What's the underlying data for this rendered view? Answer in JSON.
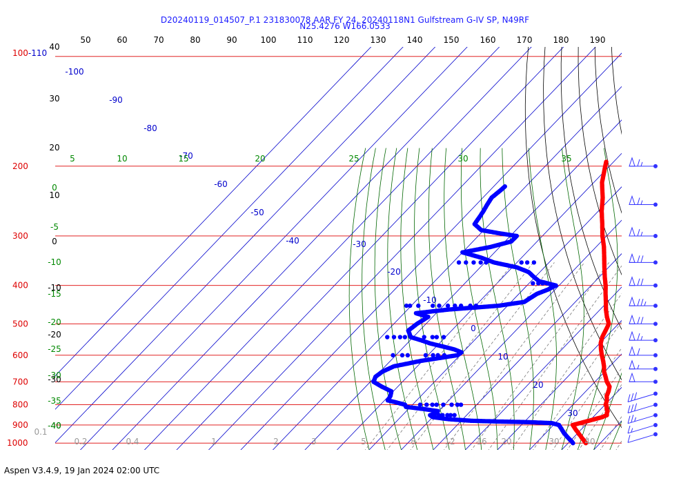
{
  "header": {
    "title_line1": "D20240119_014507_P.1 231830078 AAR FY 24, 20240118N1 Gulfstream G-IV SP, N49RF",
    "title_line2": "N25.4276 W166.0533"
  },
  "footer": {
    "text": "Aspen V3.4.9, 19 Jan 2024  02:00 UTC"
  },
  "colors": {
    "isobar": "#dd0000",
    "isotherm": "#0000cc",
    "dry_adiabat": "#000000",
    "moist_adiabat": "#006600",
    "mixing_ratio": "#777777",
    "temperature": "#ff0000",
    "dewpoint": "#0000ff",
    "wind_barb": "#3333ff"
  },
  "chart_data": {
    "type": "scatter",
    "chart_kind": "skew-t log-p sounding",
    "pressure_levels": [
      "100-110",
      "200",
      "300",
      "400",
      "500",
      "600",
      "700",
      "800",
      "900",
      "1000"
    ],
    "top_theta_labels": [
      "50",
      "60",
      "70",
      "80",
      "90",
      "100",
      "110",
      "120",
      "130",
      "140",
      "150",
      "160",
      "170",
      "180",
      "190"
    ],
    "isotherm_labels": [
      "-100",
      "-90",
      "-80",
      "-70",
      "-60",
      "-50",
      "-40",
      "-30",
      "-20",
      "-10",
      "0",
      "10",
      "20",
      "30"
    ],
    "left_temp_labels": [
      "40",
      "30",
      "20",
      "10",
      "0",
      "-10",
      "-20",
      "-30",
      "-40"
    ],
    "moist_labels_top": [
      "5",
      "10",
      "15",
      "20",
      "25",
      "30",
      "35"
    ],
    "moist_labels_left": [
      "0",
      "-5",
      "-10",
      "-15",
      "-20",
      "-25",
      "-30",
      "-35",
      "-40"
    ],
    "mixing_ratio_labels": [
      "0.1",
      "0.2",
      "0.4",
      "1",
      "2",
      "3",
      "5",
      "8",
      "12",
      "16",
      "20",
      "30",
      "40"
    ],
    "temperature_profile": [
      {
        "p": 1000,
        "t": 25.5
      },
      {
        "p": 990,
        "t": 24.6
      },
      {
        "p": 980,
        "t": 23.7
      },
      {
        "p": 970,
        "t": 22.7
      },
      {
        "p": 960,
        "t": 21.8
      },
      {
        "p": 950,
        "t": 20.8
      },
      {
        "p": 940,
        "t": 19.9
      },
      {
        "p": 930,
        "t": 18.9
      },
      {
        "p": 920,
        "t": 17.9
      },
      {
        "p": 910,
        "t": 17.0
      },
      {
        "p": 900,
        "t": 16.0
      },
      {
        "p": 890,
        "t": 17.7
      },
      {
        "p": 880,
        "t": 19.4
      },
      {
        "p": 870,
        "t": 21.1
      },
      {
        "p": 860,
        "t": 22.8
      },
      {
        "p": 850,
        "t": 23.7
      },
      {
        "p": 840,
        "t": 23.1
      },
      {
        "p": 830,
        "t": 22.7
      },
      {
        "p": 820,
        "t": 21.8
      },
      {
        "p": 810,
        "t": 21.2
      },
      {
        "p": 800,
        "t": 20.2
      },
      {
        "p": 780,
        "t": 19.3
      },
      {
        "p": 760,
        "t": 17.9
      },
      {
        "p": 740,
        "t": 17.1
      },
      {
        "p": 720,
        "t": 16.0
      },
      {
        "p": 700,
        "t": 13.7
      },
      {
        "p": 680,
        "t": 11.8
      },
      {
        "p": 660,
        "t": 9.8
      },
      {
        "p": 640,
        "t": 8.2
      },
      {
        "p": 620,
        "t": 6.3
      },
      {
        "p": 600,
        "t": 4.2
      },
      {
        "p": 580,
        "t": 2.2
      },
      {
        "p": 560,
        "t": 0.3
      },
      {
        "p": 540,
        "t": -1.1
      },
      {
        "p": 520,
        "t": -2.0
      },
      {
        "p": 500,
        "t": -3.0
      },
      {
        "p": 480,
        "t": -5.7
      },
      {
        "p": 460,
        "t": -8.2
      },
      {
        "p": 440,
        "t": -10.5
      },
      {
        "p": 420,
        "t": -13.0
      },
      {
        "p": 400,
        "t": -15.5
      },
      {
        "p": 380,
        "t": -18.4
      },
      {
        "p": 360,
        "t": -21.3
      },
      {
        "p": 340,
        "t": -24.3
      },
      {
        "p": 320,
        "t": -27.5
      },
      {
        "p": 300,
        "t": -31.3
      },
      {
        "p": 280,
        "t": -34.9
      },
      {
        "p": 260,
        "t": -38.9
      },
      {
        "p": 240,
        "t": -42.7
      },
      {
        "p": 220,
        "t": -47.4
      },
      {
        "p": 200,
        "t": -51.3
      },
      {
        "p": 195,
        "t": -52.3
      }
    ],
    "dewpoint_profile": [
      {
        "p": 1000,
        "t": 21.5
      },
      {
        "p": 990,
        "t": 20.6
      },
      {
        "p": 980,
        "t": 19.5
      },
      {
        "p": 960,
        "t": 17.4
      },
      {
        "p": 940,
        "t": 15.4
      },
      {
        "p": 920,
        "t": 13.6
      },
      {
        "p": 900,
        "t": 11.7
      },
      {
        "p": 890,
        "t": 8.9
      },
      {
        "p": 885,
        "t": 1.0
      },
      {
        "p": 882,
        "t": -8.0
      },
      {
        "p": 878,
        "t": -17.0
      },
      {
        "p": 870,
        "t": -24.4
      },
      {
        "p": 860,
        "t": -29.9
      },
      {
        "p": 850,
        "t": -31.4
      },
      {
        "p": 840,
        "t": -30.1
      },
      {
        "p": 830,
        "t": -30.2
      },
      {
        "p": 820,
        "t": -35.3
      },
      {
        "p": 810,
        "t": -41.4
      },
      {
        "p": 800,
        "t": -42.3
      },
      {
        "p": 790,
        "t": -45.5
      },
      {
        "p": 780,
        "t": -49.0
      },
      {
        "p": 760,
        "t": -49.5
      },
      {
        "p": 740,
        "t": -50.6
      },
      {
        "p": 720,
        "t": -55.0
      },
      {
        "p": 700,
        "t": -59.0
      },
      {
        "p": 680,
        "t": -59.9
      },
      {
        "p": 660,
        "t": -59.3
      },
      {
        "p": 640,
        "t": -57.3
      },
      {
        "p": 620,
        "t": -50.5
      },
      {
        "p": 600,
        "t": -40.8
      },
      {
        "p": 590,
        "t": -40.4
      },
      {
        "p": 580,
        "t": -43.5
      },
      {
        "p": 570,
        "t": -48.1
      },
      {
        "p": 560,
        "t": -52.9
      },
      {
        "p": 550,
        "t": -56.6
      },
      {
        "p": 540,
        "t": -60.8
      },
      {
        "p": 530,
        "t": -62.1
      },
      {
        "p": 520,
        "t": -63.5
      },
      {
        "p": 500,
        "t": -62.8
      },
      {
        "p": 480,
        "t": -61.4
      },
      {
        "p": 470,
        "t": -66.3
      },
      {
        "p": 460,
        "t": -57.2
      },
      {
        "p": 450,
        "t": -42.8
      },
      {
        "p": 440,
        "t": -35.9
      },
      {
        "p": 430,
        "t": -35.2
      },
      {
        "p": 420,
        "t": -34.4
      },
      {
        "p": 410,
        "t": -32.3
      },
      {
        "p": 400,
        "t": -31.0
      },
      {
        "p": 390,
        "t": -37.6
      },
      {
        "p": 380,
        "t": -40.6
      },
      {
        "p": 370,
        "t": -43.5
      },
      {
        "p": 360,
        "t": -48.6
      },
      {
        "p": 350,
        "t": -57.1
      },
      {
        "p": 340,
        "t": -62.8
      },
      {
        "p": 330,
        "t": -70.0
      },
      {
        "p": 320,
        "t": -63.0
      },
      {
        "p": 310,
        "t": -58.1
      },
      {
        "p": 300,
        "t": -58.0
      },
      {
        "p": 295,
        "t": -64.7
      },
      {
        "p": 290,
        "t": -70.8
      },
      {
        "p": 280,
        "t": -74.7
      },
      {
        "p": 270,
        "t": -75.2
      },
      {
        "p": 260,
        "t": -75.8
      },
      {
        "p": 250,
        "t": -76.6
      },
      {
        "p": 240,
        "t": -77.3
      },
      {
        "p": 230,
        "t": -76.7
      },
      {
        "p": 225,
        "t": -76.5
      }
    ],
    "dewpoint_extra_points": [
      {
        "p": 850,
        "t": -28.6
      },
      {
        "p": 850,
        "t": -27.5
      },
      {
        "p": 850,
        "t": -26.0
      },
      {
        "p": 850,
        "t": -25.0
      },
      {
        "p": 850,
        "t": -23.8
      },
      {
        "p": 800,
        "t": -37.6
      },
      {
        "p": 800,
        "t": -35.6
      },
      {
        "p": 800,
        "t": -33.8
      },
      {
        "p": 800,
        "t": -32.5
      },
      {
        "p": 800,
        "t": -30.4
      },
      {
        "p": 800,
        "t": -27.8
      },
      {
        "p": 800,
        "t": -26.0
      },
      {
        "p": 800,
        "t": -24.9
      },
      {
        "p": 600,
        "t": -60.9
      },
      {
        "p": 600,
        "t": -58.0
      },
      {
        "p": 600,
        "t": -56.3
      },
      {
        "p": 600,
        "t": -50.7
      },
      {
        "p": 600,
        "t": -48.4
      },
      {
        "p": 600,
        "t": -46.9
      },
      {
        "p": 600,
        "t": -44.9
      },
      {
        "p": 540,
        "t": -68.1
      },
      {
        "p": 540,
        "t": -66.0
      },
      {
        "p": 540,
        "t": -64.1
      },
      {
        "p": 540,
        "t": -62.6
      },
      {
        "p": 540,
        "t": -56.6
      },
      {
        "p": 540,
        "t": -54.0
      },
      {
        "p": 540,
        "t": -52.7
      },
      {
        "p": 540,
        "t": -50.5
      },
      {
        "p": 450,
        "t": -71.5
      },
      {
        "p": 450,
        "t": -70.4
      },
      {
        "p": 450,
        "t": -67.8
      },
      {
        "p": 450,
        "t": -63.3
      },
      {
        "p": 450,
        "t": -61.3
      },
      {
        "p": 450,
        "t": -58.6
      },
      {
        "p": 450,
        "t": -56.4
      },
      {
        "p": 450,
        "t": -54.5
      },
      {
        "p": 450,
        "t": -51.6
      },
      {
        "p": 450,
        "t": -49.8
      },
      {
        "p": 395,
        "t": -38.8
      },
      {
        "p": 395,
        "t": -37.1
      },
      {
        "p": 395,
        "t": -35.8
      },
      {
        "p": 350,
        "t": -68.1
      },
      {
        "p": 350,
        "t": -65.9
      },
      {
        "p": 350,
        "t": -63.5
      },
      {
        "p": 350,
        "t": -61.3
      },
      {
        "p": 350,
        "t": -59.6
      },
      {
        "p": 350,
        "t": -48.6
      },
      {
        "p": 350,
        "t": -46.8
      },
      {
        "p": 350,
        "t": -44.7
      }
    ],
    "wind_barbs": [
      {
        "p": 200,
        "speed_kt": 65
      },
      {
        "p": 250,
        "speed_kt": 65
      },
      {
        "p": 300,
        "speed_kt": 65
      },
      {
        "p": 350,
        "speed_kt": 70
      },
      {
        "p": 400,
        "speed_kt": 70
      },
      {
        "p": 450,
        "speed_kt": 75
      },
      {
        "p": 500,
        "speed_kt": 70
      },
      {
        "p": 550,
        "speed_kt": 65
      },
      {
        "p": 600,
        "speed_kt": 60
      },
      {
        "p": 650,
        "speed_kt": 55
      },
      {
        "p": 700,
        "speed_kt": 50
      },
      {
        "p": 750,
        "speed_kt": 30
      },
      {
        "p": 800,
        "speed_kt": 30
      },
      {
        "p": 850,
        "speed_kt": 25
      },
      {
        "p": 900,
        "speed_kt": 15
      },
      {
        "p": 950,
        "speed_kt": 10
      }
    ]
  }
}
